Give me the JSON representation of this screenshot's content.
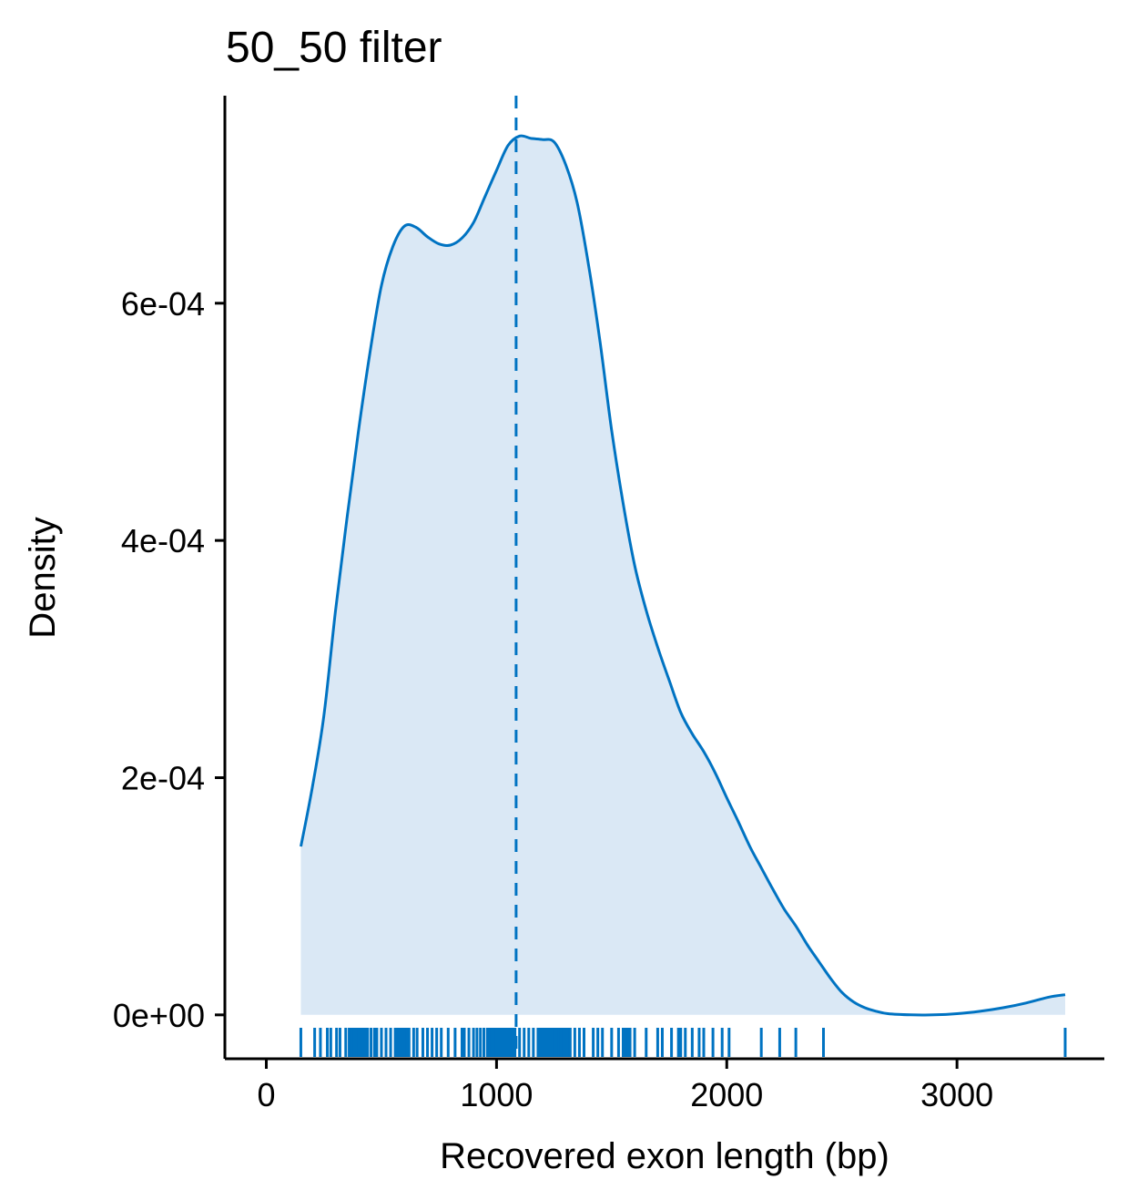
{
  "chart_data": {
    "type": "area",
    "title": "50_50 filter",
    "xlabel": "Recovered exon length (bp)",
    "ylabel": "Density",
    "xlim": [
      -180,
      3640
    ],
    "ylim": [
      -3.7e-05,
      0.000775
    ],
    "x_ticks": [
      0,
      1000,
      2000,
      3000
    ],
    "x_tick_labels": [
      "0",
      "1000",
      "2000",
      "3000"
    ],
    "y_ticks": [
      0,
      0.0002,
      0.0004,
      0.0006
    ],
    "y_tick_labels": [
      "0e+00",
      "2e-04",
      "4e-04",
      "6e-04"
    ],
    "grid": false,
    "legend": "none",
    "colors": {
      "line": "#0073c2",
      "fill": "#dae8f5"
    },
    "series": [
      {
        "x": [
          150,
          200,
          250,
          300,
          350,
          400,
          450,
          500,
          550,
          600,
          650,
          700,
          750,
          800,
          850,
          900,
          950,
          1000,
          1050,
          1100,
          1150,
          1200,
          1250,
          1300,
          1350,
          1400,
          1450,
          1500,
          1550,
          1600,
          1650,
          1700,
          1750,
          1800,
          1850,
          1900,
          1950,
          2000,
          2050,
          2100,
          2150,
          2200,
          2250,
          2300,
          2350,
          2400,
          2450,
          2500,
          2550,
          2600,
          2650,
          2700,
          2800,
          2900,
          3000,
          3100,
          3200,
          3300,
          3400,
          3470
        ],
        "y": [
          0.000142,
          0.000192,
          0.000252,
          0.00034,
          0.000418,
          0.000492,
          0.000558,
          0.000615,
          0.000648,
          0.000665,
          0.000664,
          0.000656,
          0.00065,
          0.000649,
          0.000655,
          0.000668,
          0.00069,
          0.000712,
          0.000733,
          0.000741,
          0.000739,
          0.000738,
          0.000736,
          0.000717,
          0.000685,
          0.000632,
          0.000567,
          0.000493,
          0.000431,
          0.000379,
          0.000341,
          0.00031,
          0.000282,
          0.000255,
          0.000237,
          0.000222,
          0.000204,
          0.000183,
          0.000163,
          0.000142,
          0.000124,
          0.000106,
          8.9e-05,
          7.5e-05,
          5.9e-05,
          4.5e-05,
          3.1e-05,
          1.9e-05,
          1.1e-05,
          6e-06,
          3e-06,
          1e-06,
          0,
          0,
          1e-06,
          3e-06,
          6e-06,
          1e-05,
          1.5e-05,
          1.7e-05
        ]
      }
    ],
    "mean_line_x": 1085,
    "rug": [
      150,
      210,
      235,
      265,
      280,
      305,
      320,
      345,
      360,
      370,
      380,
      390,
      400,
      410,
      420,
      430,
      440,
      455,
      470,
      480,
      500,
      520,
      540,
      560,
      570,
      580,
      590,
      600,
      610,
      620,
      640,
      655,
      680,
      700,
      720,
      740,
      760,
      790,
      820,
      850,
      860,
      880,
      900,
      915,
      930,
      945,
      960,
      970,
      980,
      990,
      1000,
      1010,
      1020,
      1030,
      1040,
      1050,
      1060,
      1070,
      1080,
      1100,
      1120,
      1140,
      1160,
      1180,
      1190,
      1200,
      1210,
      1220,
      1230,
      1240,
      1250,
      1260,
      1270,
      1280,
      1290,
      1300,
      1310,
      1320,
      1340,
      1360,
      1380,
      1420,
      1440,
      1460,
      1500,
      1530,
      1550,
      1560,
      1570,
      1580,
      1600,
      1650,
      1700,
      1720,
      1760,
      1790,
      1800,
      1820,
      1850,
      1880,
      1900,
      1940,
      1980,
      2010,
      2150,
      2230,
      2300,
      2420,
      3470
    ]
  }
}
